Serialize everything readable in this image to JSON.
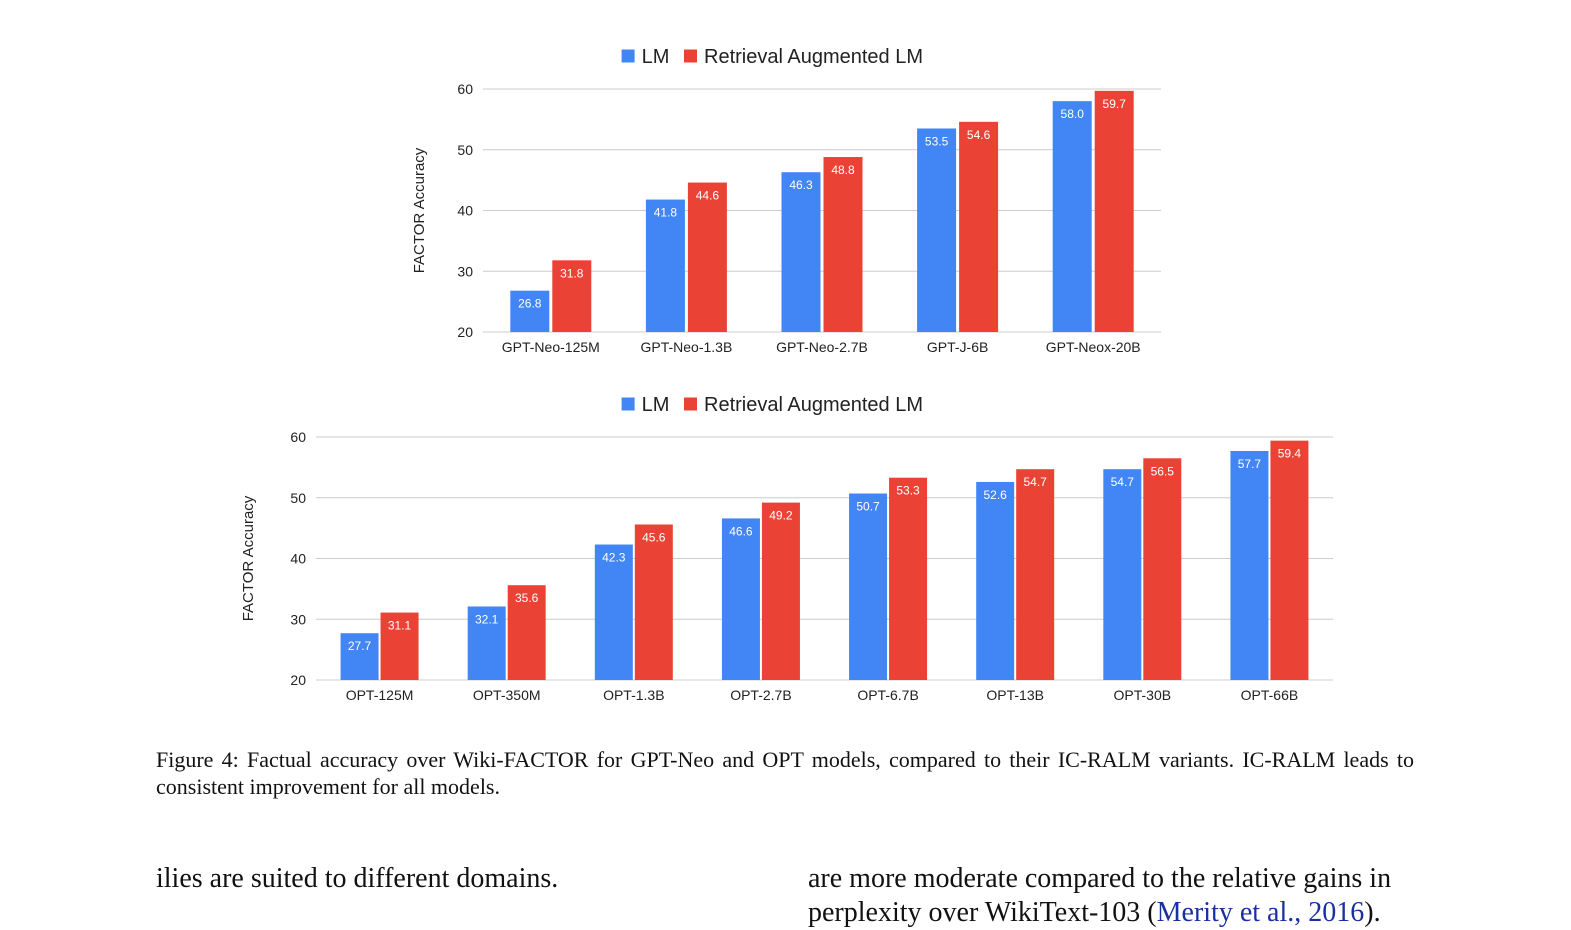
{
  "chart_data": [
    {
      "type": "bar",
      "categories": [
        "GPT-Neo-125M",
        "GPT-Neo-1.3B",
        "GPT-Neo-2.7B",
        "GPT-J-6B",
        "GPT-Neox-20B"
      ],
      "series": [
        {
          "name": "LM",
          "color": "#4285f4",
          "values": [
            26.8,
            41.8,
            46.3,
            53.5,
            58.0
          ],
          "labels": [
            "26.8",
            "41.8",
            "46.3",
            "53.5",
            "58.0"
          ]
        },
        {
          "name": "Retrieval Augmented LM",
          "color": "#ea4335",
          "values": [
            31.8,
            44.6,
            48.8,
            54.6,
            59.7
          ],
          "labels": [
            "31.8",
            "44.6",
            "48.8",
            "54.6",
            "59.7"
          ]
        }
      ],
      "title": "",
      "xlabel": "",
      "ylabel": "FACTOR Accuracy",
      "ylim": [
        20,
        60
      ],
      "yticks": [
        "20",
        "30",
        "40",
        "50",
        "60"
      ],
      "grid": true,
      "legend": "top-center"
    },
    {
      "type": "bar",
      "categories": [
        "OPT-125M",
        "OPT-350M",
        "OPT-1.3B",
        "OPT-2.7B",
        "OPT-6.7B",
        "OPT-13B",
        "OPT-30B",
        "OPT-66B"
      ],
      "series": [
        {
          "name": "LM",
          "color": "#4285f4",
          "values": [
            27.7,
            32.1,
            42.3,
            46.6,
            50.7,
            52.6,
            54.7,
            57.7
          ],
          "labels": [
            "27.7",
            "32.1",
            "42.3",
            "46.6",
            "50.7",
            "52.6",
            "54.7",
            "57.7"
          ]
        },
        {
          "name": "Retrieval Augmented LM",
          "color": "#ea4335",
          "values": [
            31.1,
            35.6,
            45.6,
            49.2,
            53.3,
            54.7,
            56.5,
            59.4
          ],
          "labels": [
            "31.1",
            "35.6",
            "45.6",
            "49.2",
            "53.3",
            "54.7",
            "56.5",
            "59.4"
          ]
        }
      ],
      "title": "",
      "xlabel": "",
      "ylabel": "FACTOR Accuracy",
      "ylim": [
        20,
        60
      ],
      "yticks": [
        "20",
        "30",
        "40",
        "50",
        "60"
      ],
      "grid": true,
      "legend": "top-center"
    }
  ],
  "caption": "Figure 4: Factual accuracy over Wiki-FACTOR for GPT-Neo and OPT models, compared to their IC-RALM variants. IC-RALM leads to consistent improvement for all models.",
  "body": {
    "left_line": "ilies are suited to different domains.",
    "right_line1": "are more moderate compared to the relative gains in",
    "right_line2_text": "perplexity over WikiText-103 (",
    "right_line2_cite": "Merity et al., 2016",
    "right_line2_end": ")."
  }
}
